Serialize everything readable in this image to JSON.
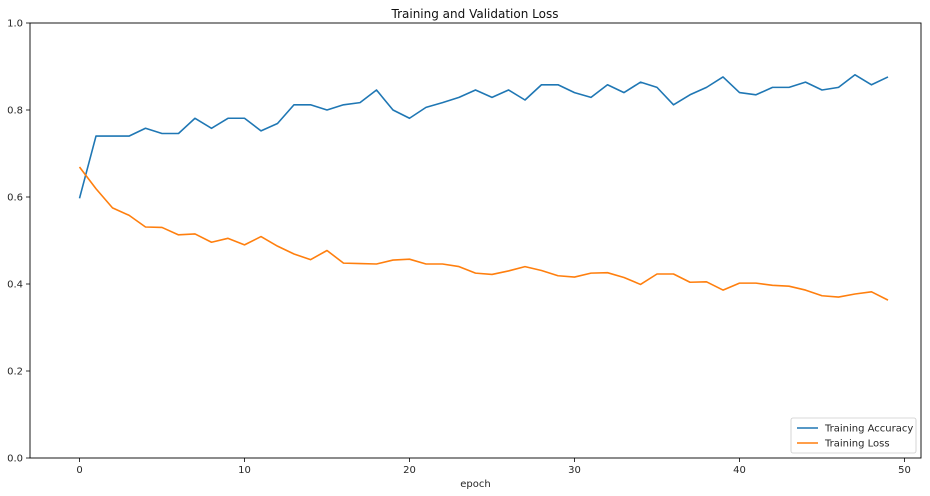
{
  "chart_data": {
    "type": "line",
    "title": "Training and Validation Loss",
    "xlabel": "epoch",
    "ylabel": "",
    "xlim": [
      -3,
      51
    ],
    "ylim": [
      0,
      1
    ],
    "xticks": [
      "0",
      "10",
      "20",
      "30",
      "40",
      "50"
    ],
    "yticks": [
      "0.0",
      "0.2",
      "0.4",
      "0.6",
      "0.8",
      "1.0"
    ],
    "legend_position": "lower-right",
    "grid": false,
    "x": [
      0,
      1,
      2,
      3,
      4,
      5,
      6,
      7,
      8,
      9,
      10,
      11,
      12,
      13,
      14,
      15,
      16,
      17,
      18,
      19,
      20,
      21,
      22,
      23,
      24,
      25,
      26,
      27,
      28,
      29,
      30,
      31,
      32,
      33,
      34,
      35,
      36,
      37,
      38,
      39,
      40,
      41,
      42,
      43,
      44,
      45,
      46,
      47,
      48,
      49
    ],
    "series": [
      {
        "name": "Training Accuracy",
        "color": "#1f77b4",
        "values": [
          0.597,
          0.74,
          0.74,
          0.74,
          0.758,
          0.746,
          0.746,
          0.781,
          0.758,
          0.781,
          0.781,
          0.752,
          0.769,
          0.812,
          0.812,
          0.8,
          0.812,
          0.817,
          0.846,
          0.8,
          0.781,
          0.806,
          0.817,
          0.829,
          0.846,
          0.829,
          0.846,
          0.823,
          0.858,
          0.858,
          0.84,
          0.829,
          0.858,
          0.84,
          0.864,
          0.852,
          0.812,
          0.835,
          0.852,
          0.876,
          0.84,
          0.835,
          0.852,
          0.852,
          0.864,
          0.846,
          0.852,
          0.881,
          0.858,
          0.876
        ]
      },
      {
        "name": "Training Loss",
        "color": "#ff7f0e",
        "values": [
          0.669,
          0.619,
          0.575,
          0.558,
          0.531,
          0.53,
          0.513,
          0.515,
          0.496,
          0.505,
          0.49,
          0.509,
          0.487,
          0.469,
          0.456,
          0.477,
          0.448,
          0.447,
          0.446,
          0.455,
          0.457,
          0.446,
          0.446,
          0.44,
          0.425,
          0.422,
          0.43,
          0.44,
          0.431,
          0.419,
          0.416,
          0.425,
          0.426,
          0.415,
          0.399,
          0.423,
          0.423,
          0.404,
          0.405,
          0.386,
          0.402,
          0.402,
          0.397,
          0.395,
          0.386,
          0.373,
          0.37,
          0.377,
          0.382,
          0.363
        ]
      }
    ]
  }
}
